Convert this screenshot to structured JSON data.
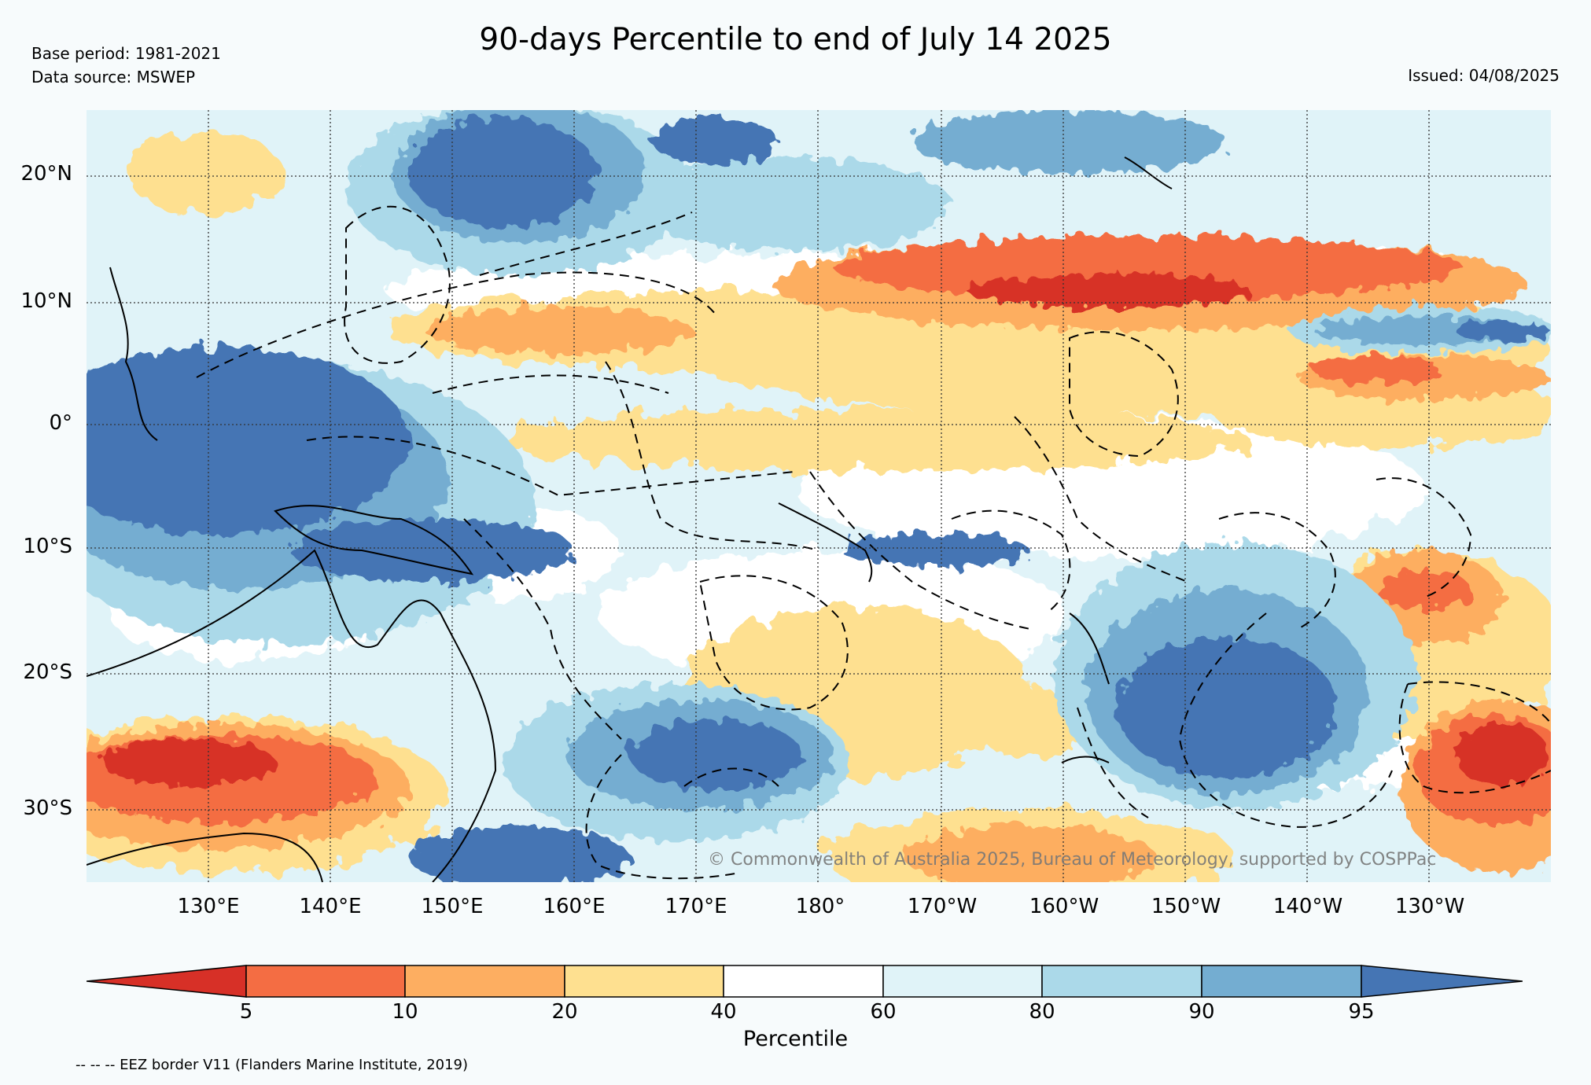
{
  "header": {
    "title": "90-days Percentile to end of July 14 2025",
    "base_period": "Base period: 1981-2021",
    "data_source": "Data source: MSWEP",
    "issued": "Issued: 04/08/2025"
  },
  "map": {
    "latitude_labels": [
      "20°N",
      "10°N",
      "0°",
      "10°S",
      "20°S",
      "30°S"
    ],
    "longitude_labels": [
      "130°E",
      "140°E",
      "150°E",
      "160°E",
      "170°E",
      "180°",
      "170°W",
      "160°W",
      "150°W",
      "140°W",
      "130°W"
    ],
    "copyright": "© Commonwealth of Australia 2025, Bureau of Meteorology, supported by COSPPac"
  },
  "colorbar": {
    "label": "Percentile",
    "ticks": [
      "5",
      "10",
      "20",
      "40",
      "60",
      "80",
      "90",
      "95"
    ],
    "colors": [
      "#d73027",
      "#f46d43",
      "#fdae61",
      "#fee090",
      "#ffffff",
      "#e0f3f8",
      "#abd9e9",
      "#74add1",
      "#4575b4"
    ]
  },
  "footnote": "-- -- -- EEZ border V11 (Flanders Marine Institute, 2019)"
}
